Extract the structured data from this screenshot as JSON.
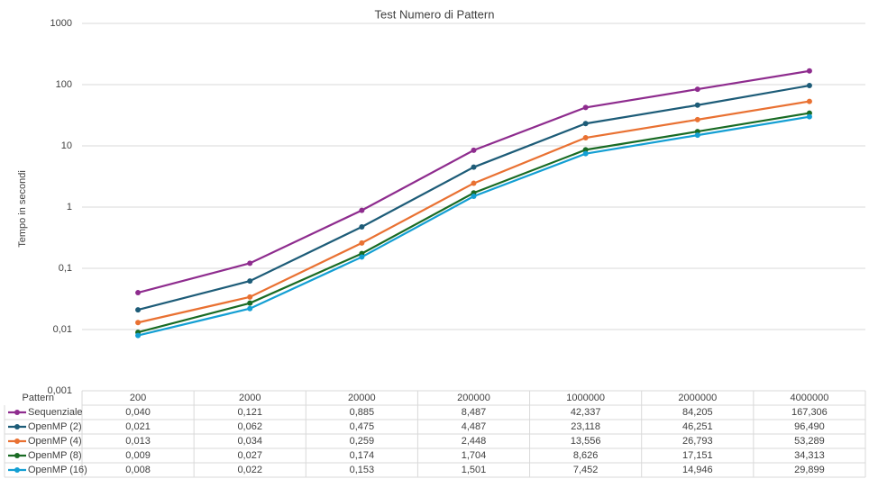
{
  "chart_data": {
    "type": "line",
    "title": "Test Numero di Pattern",
    "ylabel": "Tempo in secondi",
    "xlabel": "Pattern",
    "categories": [
      "200",
      "2000",
      "20000",
      "200000",
      "1000000",
      "2000000",
      "4000000"
    ],
    "log_scale": true,
    "grid": true,
    "ylim": [
      0.001,
      1000
    ],
    "yticks": [
      {
        "value": 0.001,
        "label": "0,001"
      },
      {
        "value": 0.01,
        "label": "0,01"
      },
      {
        "value": 0.1,
        "label": "0,1"
      },
      1,
      10,
      100,
      1000
    ],
    "series": [
      {
        "name": "Sequenziale",
        "color": "#8e2c8e",
        "values": [
          0.04,
          0.121,
          0.885,
          8.487,
          42.337,
          84.205,
          167.306
        ],
        "value_labels": [
          "0,040",
          "0,121",
          "0,885",
          "8,487",
          "42,337",
          "84,205",
          "167,306"
        ]
      },
      {
        "name": "OpenMP (2)",
        "color": "#1d5c78",
        "values": [
          0.021,
          0.062,
          0.475,
          4.487,
          23.118,
          46.251,
          96.49
        ],
        "value_labels": [
          "0,021",
          "0,062",
          "0,475",
          "4,487",
          "23,118",
          "46,251",
          "96,490"
        ]
      },
      {
        "name": "OpenMP (4)",
        "color": "#e97132",
        "values": [
          0.013,
          0.034,
          0.259,
          2.448,
          13.556,
          26.793,
          53.289
        ],
        "value_labels": [
          "0,013",
          "0,034",
          "0,259",
          "2,448",
          "13,556",
          "26,793",
          "53,289"
        ]
      },
      {
        "name": "OpenMP (8)",
        "color": "#196b24",
        "values": [
          0.009,
          0.027,
          0.174,
          1.704,
          8.626,
          17.151,
          34.313
        ],
        "value_labels": [
          "0,009",
          "0,027",
          "0,174",
          "1,704",
          "8,626",
          "17,151",
          "34,313"
        ]
      },
      {
        "name": "OpenMP (16)",
        "color": "#139fd3",
        "values": [
          0.008,
          0.022,
          0.153,
          1.501,
          7.452,
          14.946,
          29.899
        ],
        "value_labels": [
          "0,008",
          "0,022",
          "0,153",
          "1,501",
          "7,452",
          "14,946",
          "29,899"
        ]
      }
    ]
  }
}
